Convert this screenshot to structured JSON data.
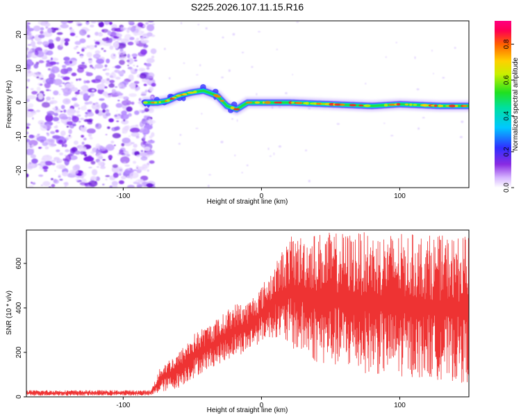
{
  "title": "S225.2026.107.11.15.R16",
  "chart_data": [
    {
      "type": "heatmap",
      "xlabel": "Height of straight line (km)",
      "ylabel": "Frequency (Hz)",
      "xlim": [
        -170,
        150
      ],
      "ylim": [
        -25,
        24
      ],
      "xticks": [
        -100,
        0,
        100
      ],
      "yticks": [
        -20,
        -10,
        0,
        10,
        20
      ],
      "noise_region_x": [
        -170,
        -80
      ],
      "signal_track": [
        {
          "x": -84,
          "y": 0
        },
        {
          "x": -75,
          "y": 0
        },
        {
          "x": -68,
          "y": 0.5
        },
        {
          "x": -60,
          "y": 2
        },
        {
          "x": -50,
          "y": 3
        },
        {
          "x": -42,
          "y": 3.5
        },
        {
          "x": -32,
          "y": 2
        },
        {
          "x": -25,
          "y": -1
        },
        {
          "x": -18,
          "y": -2
        },
        {
          "x": -10,
          "y": 0
        },
        {
          "x": 0,
          "y": 0
        },
        {
          "x": 20,
          "y": 0
        },
        {
          "x": 50,
          "y": -0.5
        },
        {
          "x": 80,
          "y": -1
        },
        {
          "x": 100,
          "y": -0.5
        },
        {
          "x": 130,
          "y": -1
        },
        {
          "x": 150,
          "y": -1
        }
      ],
      "colorbar": {
        "label": "Normalized spectral amplitude",
        "range": [
          0.0,
          0.93
        ],
        "ticks": [
          "0.0",
          "0.2",
          "0.4",
          "0.6",
          "0.8"
        ],
        "tick_values": [
          0.0,
          0.2,
          0.4,
          0.6,
          0.8
        ]
      }
    },
    {
      "type": "line",
      "xlabel": "Height of straight line (km)",
      "ylabel": "SNR (10 * v/v)",
      "xlim": [
        -170,
        150
      ],
      "ylim": [
        0,
        750
      ],
      "xticks": [
        -100,
        0,
        100
      ],
      "yticks": [
        0,
        200,
        400,
        600
      ],
      "color": "#ee3333",
      "envelope": [
        {
          "x": -170,
          "min": 5,
          "max": 30
        },
        {
          "x": -80,
          "min": 5,
          "max": 30
        },
        {
          "x": -72,
          "min": 20,
          "max": 150
        },
        {
          "x": -60,
          "min": 40,
          "max": 200
        },
        {
          "x": -50,
          "min": 80,
          "max": 280
        },
        {
          "x": -40,
          "min": 120,
          "max": 320
        },
        {
          "x": -30,
          "min": 150,
          "max": 360
        },
        {
          "x": -20,
          "min": 180,
          "max": 420
        },
        {
          "x": -10,
          "min": 200,
          "max": 430
        },
        {
          "x": 0,
          "min": 250,
          "max": 500
        },
        {
          "x": 10,
          "min": 270,
          "max": 600
        },
        {
          "x": 20,
          "min": 220,
          "max": 720
        },
        {
          "x": 40,
          "min": 150,
          "max": 740
        },
        {
          "x": 80,
          "min": 100,
          "max": 740
        },
        {
          "x": 120,
          "min": 80,
          "max": 730
        },
        {
          "x": 150,
          "min": 60,
          "max": 720
        }
      ]
    }
  ]
}
